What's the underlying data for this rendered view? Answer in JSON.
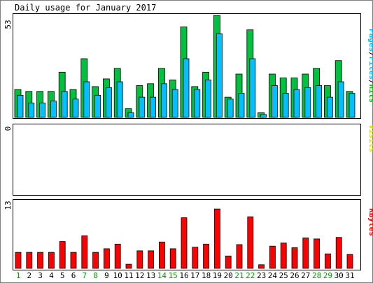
{
  "chart_data": {
    "type": "bar",
    "title": "Daily usage for January 2017",
    "x": [
      "1",
      "2",
      "3",
      "4",
      "5",
      "6",
      "7",
      "8",
      "9",
      "10",
      "11",
      "12",
      "13",
      "14",
      "15",
      "16",
      "17",
      "18",
      "19",
      "20",
      "21",
      "22",
      "23",
      "24",
      "25",
      "26",
      "27",
      "28",
      "29",
      "30",
      "31"
    ],
    "weekend_days": [
      "1",
      "7",
      "8",
      "14",
      "15",
      "21",
      "22",
      "28",
      "29"
    ],
    "panels": [
      {
        "id": "hits",
        "ymax_label": "53",
        "ylim": [
          0,
          53
        ],
        "legend": [
          "Pages",
          "/",
          "Files",
          "/",
          "Hits"
        ],
        "legend_colors": [
          "#00c0ff",
          "#000000",
          "#00c0ff",
          "#000000",
          "#00c000"
        ],
        "series": [
          {
            "name": "Hits",
            "color": "#00c040",
            "values": [
              14.5,
              13.5,
              13.5,
              13.5,
              23.5,
              14.5,
              30.5,
              16,
              20,
              25.5,
              4.5,
              16.5,
              17.5,
              25.5,
              19.5,
              47,
              16,
              23.5,
              53,
              10.5,
              22.5,
              45.5,
              2.5,
              22.5,
              20.5,
              20.5,
              22.5,
              25.5,
              16.5,
              29.5,
              13.5
            ]
          },
          {
            "name": "Files",
            "color": "#00c0ff",
            "values": [
              11.5,
              7.5,
              7.5,
              8.5,
              13.5,
              9.5,
              18.5,
              11.5,
              15.5,
              18.5,
              2.5,
              10.5,
              10.5,
              17.5,
              14.5,
              30.5,
              14.5,
              19.5,
              43.5,
              9.5,
              12.5,
              30.5,
              1.5,
              16.5,
              12.5,
              14.5,
              15.5,
              16.5,
              10.5,
              18.5,
              12.5
            ]
          }
        ]
      },
      {
        "id": "visits",
        "ymax_label": "0",
        "ylim": [
          0,
          1
        ],
        "legend": [
          "Visits"
        ],
        "legend_colors": [
          "#ffff00"
        ],
        "series": []
      },
      {
        "id": "kbytes",
        "ymax_label": "13",
        "ylim": [
          0,
          13
        ],
        "legend": [
          "KBytes"
        ],
        "legend_colors": [
          "#ff0000"
        ],
        "series": [
          {
            "name": "KBytes",
            "color": "#ff0000",
            "values": [
              3.1,
              3.1,
              3.1,
              3.1,
              5.2,
              3.1,
              6.3,
              3.1,
              3.8,
              4.7,
              0.8,
              3.4,
              3.4,
              5.1,
              3.8,
              9.8,
              4.1,
              4.7,
              11.5,
              2.4,
              4.6,
              10.0,
              0.7,
              4.3,
              4.9,
              4.0,
              5.9,
              5.7,
              2.8,
              6.0,
              2.7
            ]
          }
        ]
      }
    ]
  }
}
